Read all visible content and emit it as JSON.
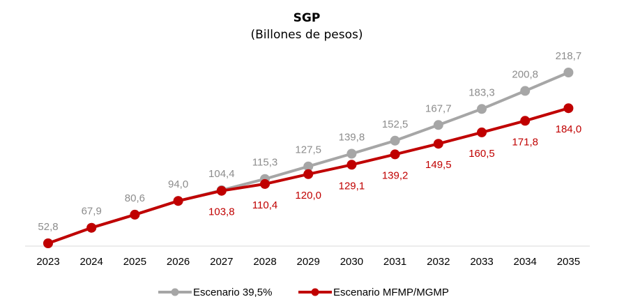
{
  "chart_data": {
    "type": "line",
    "title": "SGP",
    "subtitle": "(Billones de pesos)",
    "xlabel": "",
    "ylabel": "",
    "categories": [
      "2023",
      "2024",
      "2025",
      "2026",
      "2027",
      "2028",
      "2029",
      "2030",
      "2031",
      "2032",
      "2033",
      "2034",
      "2035"
    ],
    "ylim": [
      45,
      225
    ],
    "grid": false,
    "legend_position": "bottom-center",
    "series": [
      {
        "name": "Escenario 39,5%",
        "color": "#a6a6a6",
        "label_color": "#8c8c8c",
        "values": [
          52.8,
          67.9,
          80.6,
          94.0,
          104.4,
          115.3,
          127.5,
          139.8,
          152.5,
          167.7,
          183.3,
          200.8,
          218.7
        ],
        "labels": [
          "52,8",
          "67,9",
          "80,6",
          "94,0",
          "104,4",
          "115,3",
          "127,5",
          "139,8",
          "152,5",
          "167,7",
          "183,3",
          "200,8",
          "218,7"
        ],
        "labeled_from": 0
      },
      {
        "name": "Escenario MFMP/MGMP",
        "color": "#c00000",
        "label_color": "#c00000",
        "values": [
          52.8,
          67.9,
          80.6,
          94.0,
          103.8,
          110.4,
          120.0,
          129.1,
          139.2,
          149.5,
          160.5,
          171.8,
          184.0
        ],
        "labels": [
          "52,8",
          "67,9",
          "80,6",
          "94,0",
          "103,8",
          "110,4",
          "120,0",
          "129,1",
          "139,2",
          "149,5",
          "160,5",
          "171,8",
          "184,0"
        ],
        "labeled_from": 4
      }
    ]
  }
}
